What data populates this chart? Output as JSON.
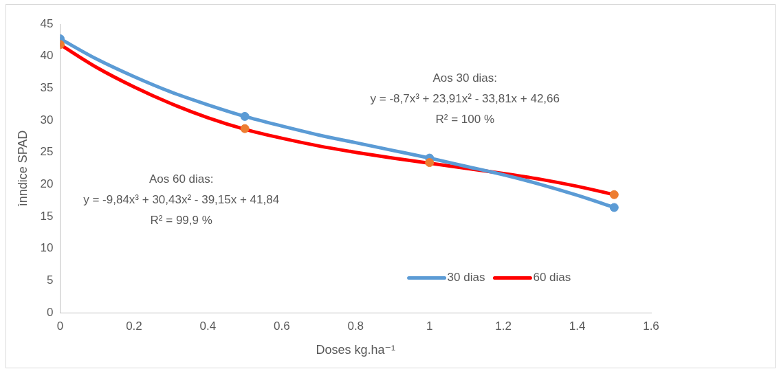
{
  "chart_data": {
    "type": "line",
    "xlabel": "Doses kg.ha⁻¹",
    "ylabel": "ìnndice SPAD",
    "xlim": [
      0,
      1.6
    ],
    "xticks": [
      0,
      0.2,
      0.4,
      0.6,
      0.8,
      1,
      1.2,
      1.4,
      1.6
    ],
    "ylim": [
      0,
      45
    ],
    "yticks": [
      0,
      5,
      10,
      15,
      20,
      25,
      30,
      35,
      40,
      45
    ],
    "grid": false,
    "legend": "bottom right",
    "series": [
      {
        "type": "scatter",
        "marker": "circle",
        "color": "#5b9bd5",
        "x": [
          0,
          0.5,
          1,
          1.5
        ],
        "values": [
          42.7,
          30.6,
          24.1,
          16.4
        ]
      },
      {
        "type": "scatter",
        "marker": "circle",
        "color": "#ed7d31",
        "x": [
          0,
          0.5,
          1,
          1.5
        ],
        "values": [
          41.8,
          28.7,
          23.4,
          18.4
        ]
      },
      {
        "marker": "none",
        "name": "30 dias",
        "color": "#5b9bd5",
        "x": [
          0,
          0.1,
          0.2,
          0.3,
          0.4,
          0.5,
          0.6,
          0.7,
          0.8,
          0.9,
          1,
          1.1,
          1.2,
          1.3,
          1.4,
          1.5
        ],
        "values": [
          42.7,
          39.5,
          36.8,
          34.4,
          32.4,
          30.6,
          29.1,
          27.7,
          26.5,
          25.3,
          24.1,
          22.8,
          21.5,
          20,
          18.3,
          16.4
        ]
      },
      {
        "marker": "none",
        "name": "60 dias",
        "color": "#ff0000",
        "x": [
          0,
          0.1,
          0.2,
          0.3,
          0.4,
          0.5,
          0.6,
          0.7,
          0.8,
          0.9,
          1,
          1.1,
          1.2,
          1.3,
          1.4,
          1.5
        ],
        "values": [
          41.8,
          38.2,
          35.2,
          32.6,
          30.4,
          28.6,
          27.2,
          26,
          25,
          24.1,
          23.3,
          22.5,
          21.7,
          20.8,
          19.7,
          18.4
        ]
      }
    ],
    "annotations": [
      "Aos 30 dias:\ny = -8,7x³ + 23,91x² - 33,81x + 42,66\nR² = 100 %",
      "Aos 60 dias:\ny = -9,84x³ + 30,43x² - 39,15x + 41,84\nR² = 99,9 %"
    ]
  }
}
